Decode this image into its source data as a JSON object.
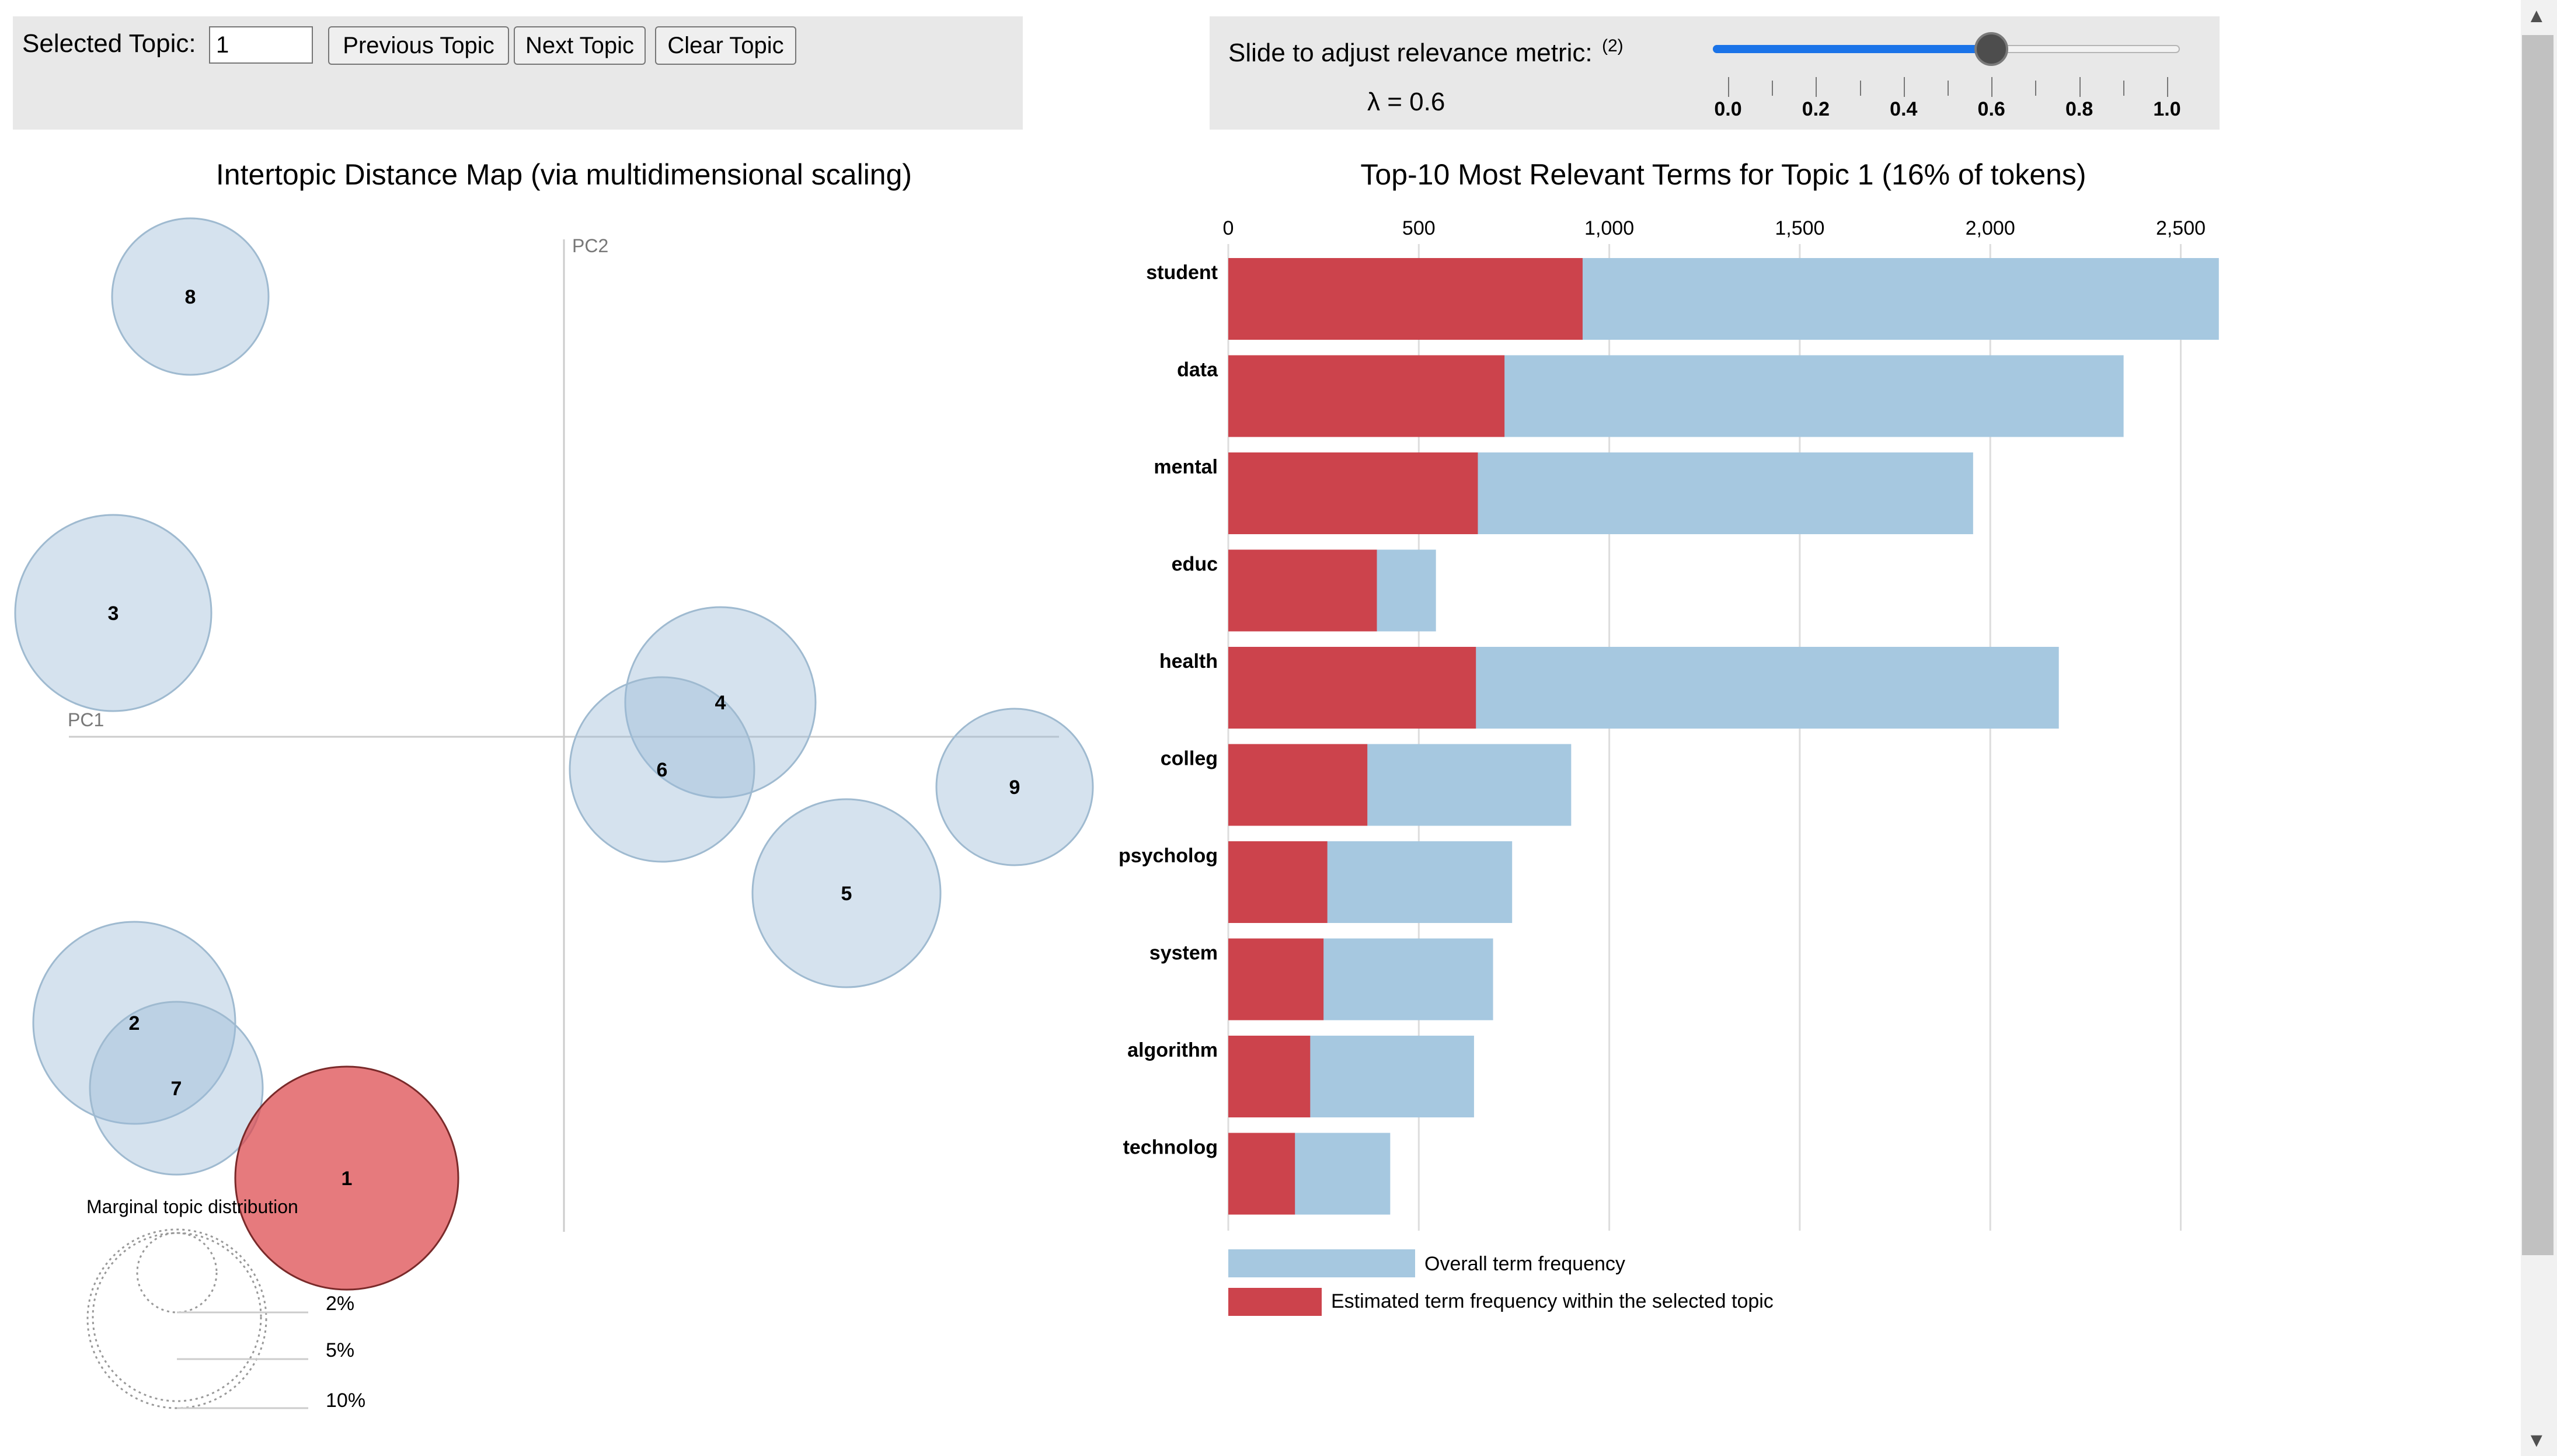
{
  "controls": {
    "selected_topic_label": "Selected Topic:",
    "selected_topic_value": "1",
    "previous_label": "Previous Topic",
    "next_label": "Next Topic",
    "clear_label": "Clear Topic",
    "slider_label": "Slide to adjust relevance metric:",
    "slider_footnote": "(2)",
    "lambda_text": "λ = 0.6",
    "lambda_value": 0.6,
    "slider_ticks": [
      "0.0",
      "0.2",
      "0.4",
      "0.6",
      "0.8",
      "1.0"
    ]
  },
  "left": {
    "title": "Intertopic Distance Map (via multidimensional scaling)",
    "pc1": "PC1",
    "pc2": "PC2",
    "topics": [
      {
        "id": "8",
        "selected": false
      },
      {
        "id": "3",
        "selected": false
      },
      {
        "id": "4",
        "selected": false
      },
      {
        "id": "6",
        "selected": false
      },
      {
        "id": "9",
        "selected": false
      },
      {
        "id": "5",
        "selected": false
      },
      {
        "id": "2",
        "selected": false
      },
      {
        "id": "7",
        "selected": false
      },
      {
        "id": "1",
        "selected": true
      }
    ],
    "legend_title": "Marginal topic distribution",
    "legend_items": [
      "2%",
      "5%",
      "10%"
    ]
  },
  "chart_data": {
    "type": "bar",
    "title": "Top-10 Most Relevant Terms for Topic 1 (16% of tokens)",
    "categories": [
      "student",
      "data",
      "mental",
      "educ",
      "health",
      "colleg",
      "psycholog",
      "system",
      "algorithm",
      "technolog"
    ],
    "series": [
      {
        "name": "Overall term frequency",
        "values": [
          2600,
          2350,
          1955,
          545,
          2180,
          900,
          745,
          695,
          645,
          425
        ]
      },
      {
        "name": "Estimated term frequency within the selected topic",
        "values": [
          930,
          725,
          655,
          390,
          650,
          365,
          260,
          250,
          215,
          175
        ]
      }
    ],
    "xlim": [
      0,
      2600
    ],
    "x_ticks": [
      "0",
      "500",
      "1,000",
      "1,500",
      "2,000",
      "2,500"
    ],
    "colors": {
      "overall": "#a6c8e0",
      "topic": "#cc434c"
    },
    "grid": true,
    "legend_position": "bottom-left"
  }
}
